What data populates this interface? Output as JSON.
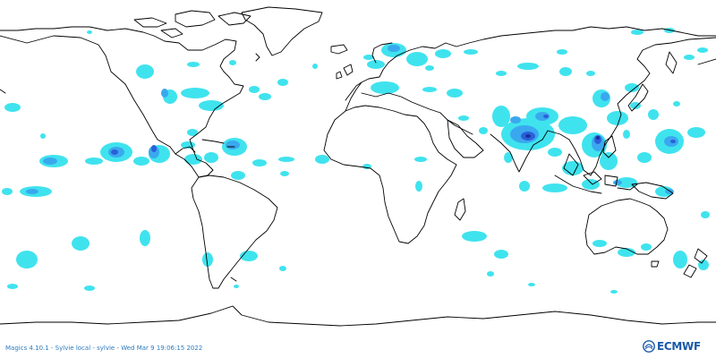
{
  "footer": {
    "run_info": "Magics 4.10.1 - Sylvie local - sylvie - Wed Mar  9 19:06:15 2022"
  },
  "logo": {
    "text": "ECMWF"
  },
  "colors": {
    "background": "#ffffff",
    "coastline": "#000000",
    "level_1": "#3fe3ee",
    "level_2": "#3aa8ee",
    "level_3": "#2b5fd9",
    "level_4": "#1a2f9a",
    "logo": "#1a5aa8",
    "footer_text": "#2a7bbf"
  },
  "legend_shown": false
}
